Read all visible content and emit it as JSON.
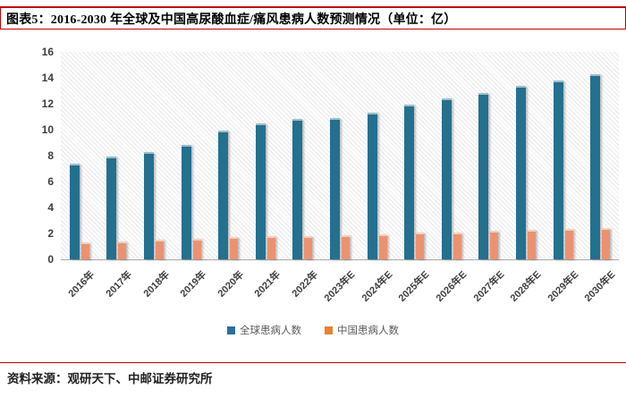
{
  "figure": {
    "title": "图表5：2016-2030 年全球及中国高尿酸血症/痛风患病人数预测情况（单位：亿）",
    "source": "资料来源：观研天下、中邮证券研究所"
  },
  "chart_data": {
    "type": "bar",
    "title": "",
    "xlabel": "",
    "ylabel": "",
    "unit": "亿",
    "categories": [
      "2016年",
      "2017年",
      "2018年",
      "2019年",
      "2020年",
      "2021年",
      "2022年",
      "2023年E",
      "2024年E",
      "2025年E",
      "2026年E",
      "2027年E",
      "2028年E",
      "2029年E",
      "2030年E"
    ],
    "series": [
      {
        "name": "全球患病人数",
        "color": "#24708F",
        "swatch": "#2C6F9E",
        "values": [
          7.4,
          7.9,
          8.3,
          8.8,
          9.9,
          10.5,
          10.8,
          10.9,
          11.3,
          11.9,
          12.4,
          12.8,
          13.4,
          13.8,
          14.3
        ]
      },
      {
        "name": "中国患病人数",
        "color": "#EC9270",
        "swatch": "#E9812F",
        "values": [
          1.3,
          1.4,
          1.5,
          1.6,
          1.75,
          1.8,
          1.8,
          1.85,
          1.95,
          2.05,
          2.1,
          2.2,
          2.25,
          2.35,
          2.4
        ]
      }
    ],
    "ylim": [
      0,
      16
    ],
    "yticks": [
      0,
      2,
      4,
      6,
      8,
      10,
      12,
      14,
      16
    ],
    "grid": false,
    "plot_background": "diagonal-hatch",
    "legend_position": "bottom"
  },
  "colors": {
    "accent_red": "#C00000",
    "axis_text": "#3d3d3d",
    "legend_text": "#595959"
  }
}
